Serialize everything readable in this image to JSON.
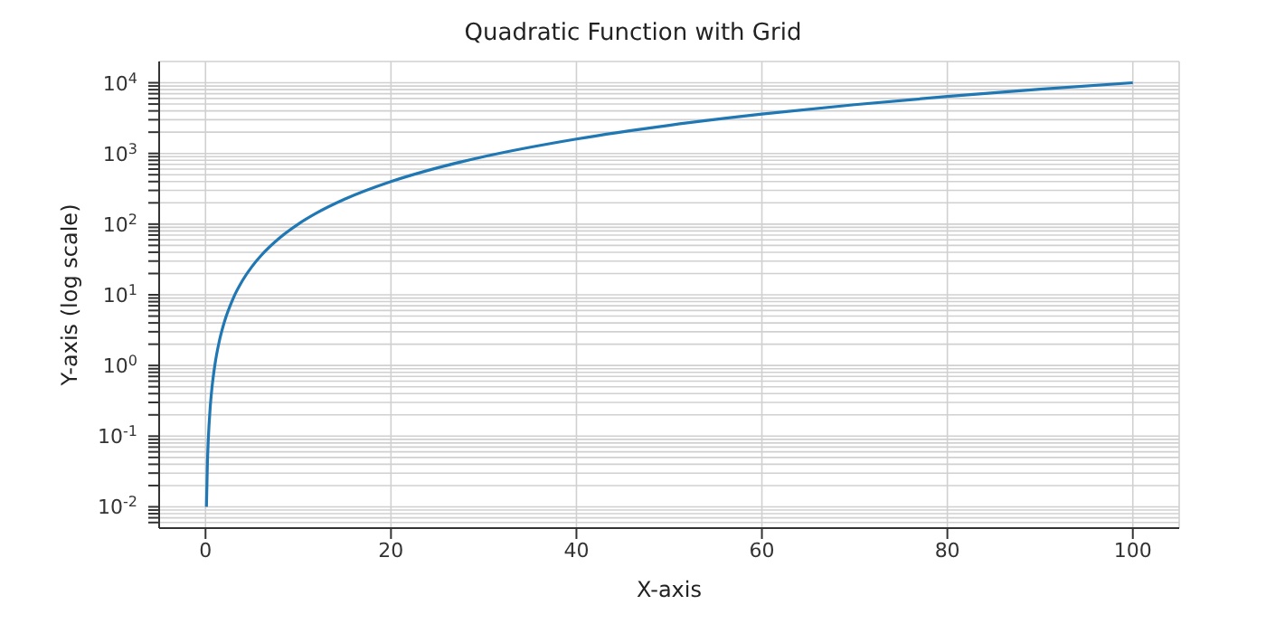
{
  "chart_data": {
    "type": "line",
    "title": "Quadratic Function with Grid",
    "xlabel": "X-axis",
    "ylabel": "Y-axis (log scale)",
    "x": [
      0.1,
      0.2,
      0.3,
      0.5,
      0.7,
      1,
      1.5,
      2,
      3,
      4,
      5,
      6,
      8,
      10,
      12,
      15,
      20,
      25,
      30,
      40,
      50,
      60,
      70,
      80,
      90,
      100
    ],
    "series": [
      {
        "color": "#1f77b4",
        "values": [
          0.01,
          0.04,
          0.09,
          0.25,
          0.49,
          1,
          2.25,
          4,
          9,
          16,
          25,
          36,
          64,
          100,
          144,
          225,
          400,
          625,
          900,
          1600,
          2500,
          3600,
          4900,
          6400,
          8100,
          10000
        ]
      }
    ],
    "log": "y",
    "grid": true,
    "marker": "none",
    "line_style": "solid",
    "xlim": [
      -5,
      105
    ],
    "xticks": [
      0,
      20,
      40,
      60,
      80,
      100
    ],
    "ylim": [
      0.005,
      20000
    ],
    "yticks": [
      {
        "value": 0.01,
        "label": "10$^{-2}$"
      },
      {
        "value": 0.1,
        "label": "10$^{-1}$"
      },
      {
        "value": 1,
        "label": "10$^{0}$"
      },
      {
        "value": 10,
        "label": "10$^{1}$"
      },
      {
        "value": 100,
        "label": "10$^{2}$"
      },
      {
        "value": 1000,
        "label": "10$^{3}$"
      },
      {
        "value": 10000,
        "label": "10$^{4}$"
      },
      {
        "value": 0.006,
        "label": null
      },
      {
        "value": 0.007,
        "label": null
      },
      {
        "value": 0.008,
        "label": null
      },
      {
        "value": 0.009,
        "label": null
      },
      {
        "value": 0.02,
        "label": null
      },
      {
        "value": 0.03,
        "label": null
      },
      {
        "value": 0.04,
        "label": null
      },
      {
        "value": 0.05,
        "label": null
      },
      {
        "value": 0.06,
        "label": null
      },
      {
        "value": 0.07,
        "label": null
      },
      {
        "value": 0.08,
        "label": null
      },
      {
        "value": 0.09,
        "label": null
      },
      {
        "value": 0.2,
        "label": null
      },
      {
        "value": 0.3,
        "label": null
      },
      {
        "value": 0.4,
        "label": null
      },
      {
        "value": 0.5,
        "label": null
      },
      {
        "value": 0.6,
        "label": null
      },
      {
        "value": 0.7,
        "label": null
      },
      {
        "value": 0.8,
        "label": null
      },
      {
        "value": 0.9,
        "label": null
      },
      {
        "value": 2,
        "label": null
      },
      {
        "value": 3,
        "label": null
      },
      {
        "value": 4,
        "label": null
      },
      {
        "value": 5,
        "label": null
      },
      {
        "value": 6,
        "label": null
      },
      {
        "value": 7,
        "label": null
      },
      {
        "value": 8,
        "label": null
      },
      {
        "value": 9,
        "label": null
      },
      {
        "value": 20,
        "label": null
      },
      {
        "value": 30,
        "label": null
      },
      {
        "value": 40,
        "label": null
      },
      {
        "value": 50,
        "label": null
      },
      {
        "value": 60,
        "label": null
      },
      {
        "value": 70,
        "label": null
      },
      {
        "value": 80,
        "label": null
      },
      {
        "value": 90,
        "label": null
      },
      {
        "value": 200,
        "label": null
      },
      {
        "value": 300,
        "label": null
      },
      {
        "value": 400,
        "label": null
      },
      {
        "value": 500,
        "label": null
      },
      {
        "value": 600,
        "label": null
      },
      {
        "value": 700,
        "label": null
      },
      {
        "value": 800,
        "label": null
      },
      {
        "value": 900,
        "label": null
      },
      {
        "value": 2000,
        "label": null
      },
      {
        "value": 3000,
        "label": null
      },
      {
        "value": 4000,
        "label": null
      },
      {
        "value": 5000,
        "label": null
      },
      {
        "value": 6000,
        "label": null
      },
      {
        "value": 7000,
        "label": null
      },
      {
        "value": 8000,
        "label": null
      },
      {
        "value": 9000,
        "label": null
      }
    ]
  }
}
